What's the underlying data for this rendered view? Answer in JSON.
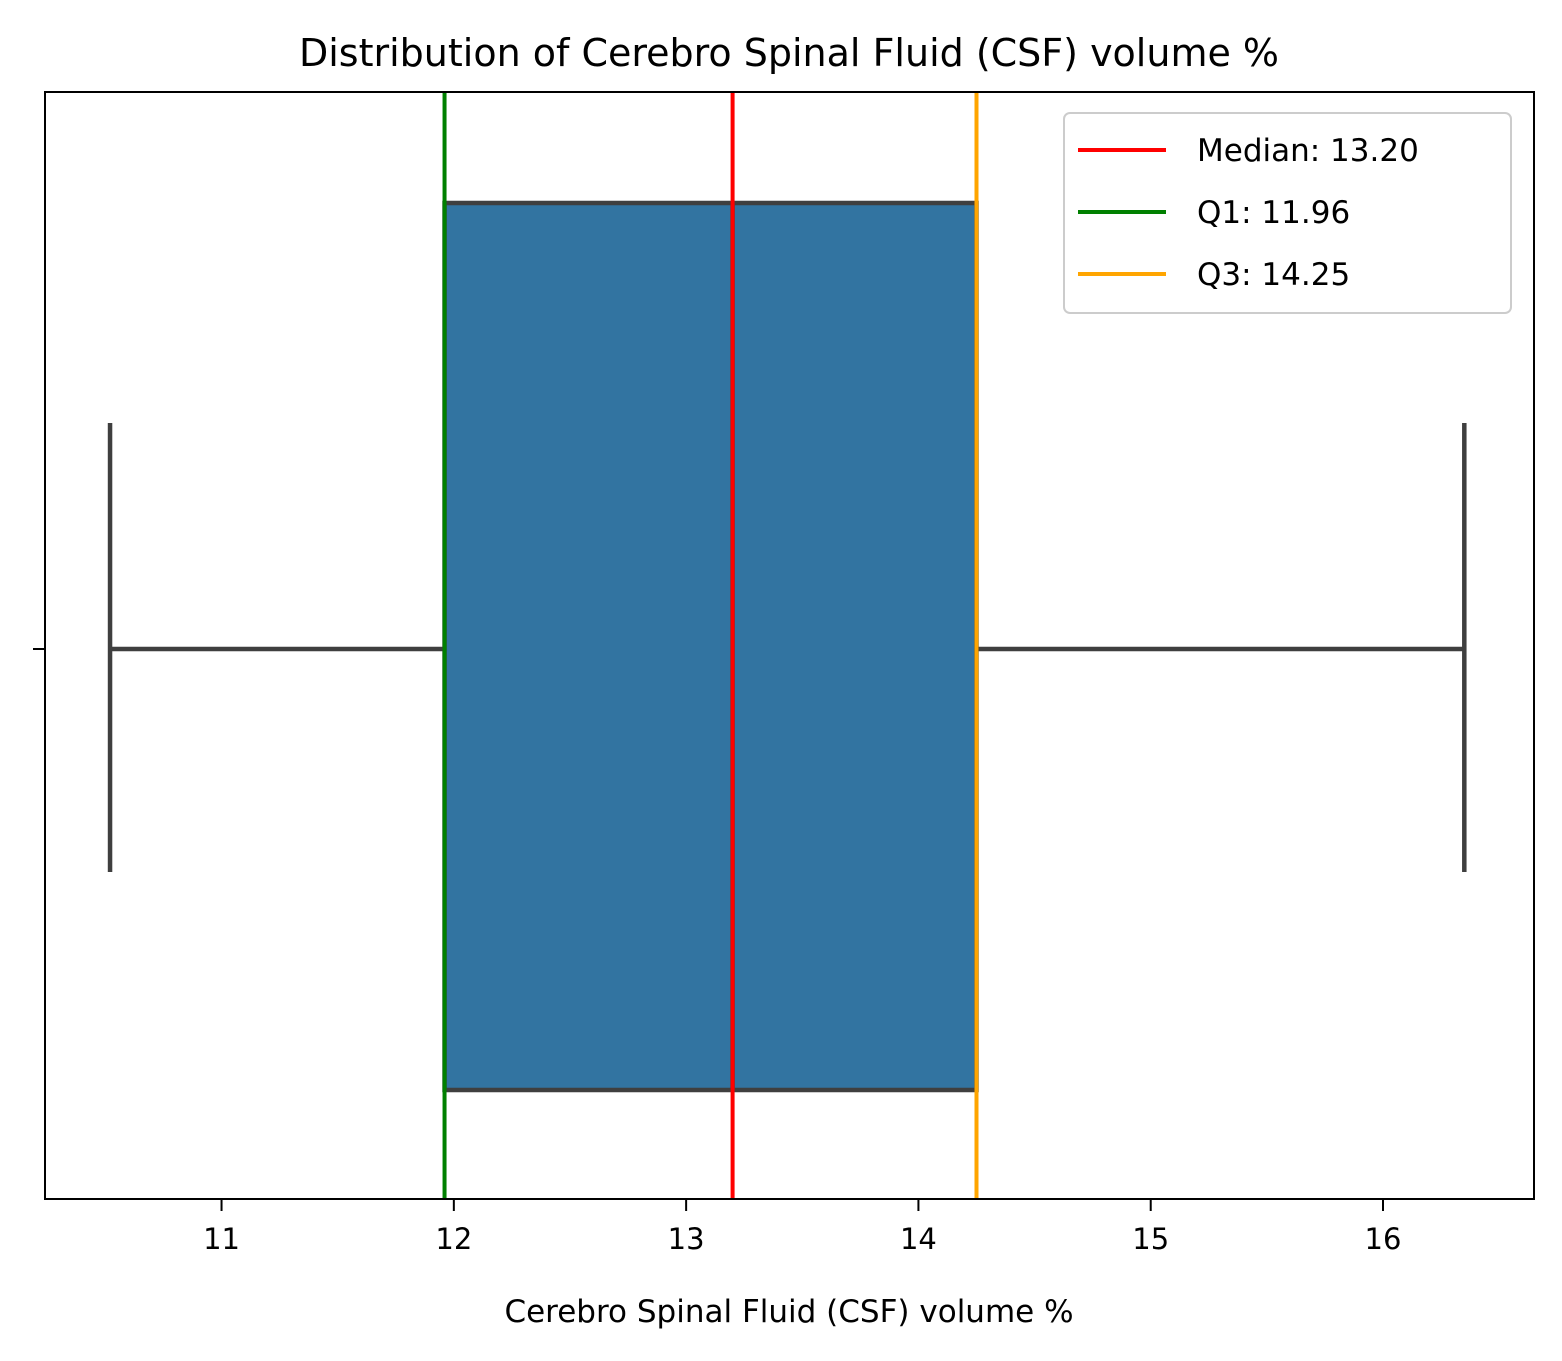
{
  "chart_data": {
    "type": "box",
    "title": "Distribution of Cerebro Spinal Fluid (CSF) volume %",
    "xlabel": "Cerebro Spinal Fluid (CSF) volume %",
    "ylabel": "",
    "xlim": [
      10.24,
      16.65
    ],
    "xticks": [
      11,
      12,
      13,
      14,
      15,
      16
    ],
    "xtick_labels": [
      "11",
      "12",
      "13",
      "14",
      "15",
      "16"
    ],
    "box": {
      "whisker_low": 10.52,
      "q1": 11.96,
      "median": 13.2,
      "q3": 14.25,
      "whisker_high": 16.35,
      "fill_color": "#3274a1",
      "line_color": "#3f3f3f"
    },
    "reference_lines": [
      {
        "name": "Median: 13.20",
        "value": 13.2,
        "color": "#ff0000"
      },
      {
        "name": "Q1: 11.96",
        "value": 11.96,
        "color": "#008000"
      },
      {
        "name": "Q3: 14.25",
        "value": 14.25,
        "color": "#ffa500"
      }
    ],
    "legend_position": "top-right",
    "grid": false
  }
}
